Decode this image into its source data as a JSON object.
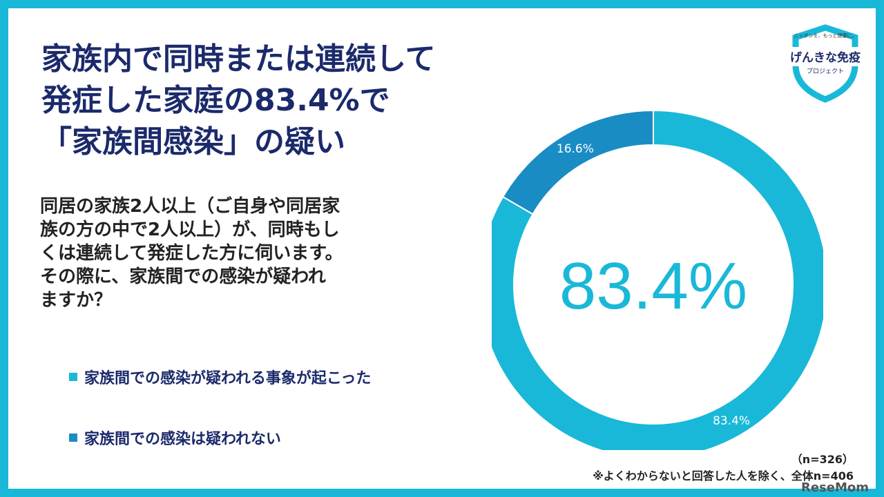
{
  "title": {
    "line1": "家族内で同時または連続して",
    "line2": "発症した家庭の83.4%で",
    "line3": "「家族間感染」の疑い"
  },
  "question": {
    "line1": "同居の家族2人以上（ご自身や同居家",
    "line2": "族の方の中で2人以上）が、同時もし",
    "line3": "くは連続して発症した方に伺います。",
    "line4": "その際に、家族間での感染が疑われ",
    "line5": "ますか？"
  },
  "logo": {
    "tagline": "ニッポンを、もっと健康に。",
    "name": "げんきな免疫",
    "sub": "プロジェクト"
  },
  "n_label": "（n=326）",
  "footnote": "※よくわからないと回答した人を除く、全体n=406",
  "watermark": "ReseMom",
  "colors": {
    "frame": "#1ab8d8",
    "primary": "#1ab8d8",
    "secondary": "#1a8cc4",
    "title": "#1b2a6b"
  },
  "chart_data": {
    "type": "pie",
    "donut": true,
    "center_label": "83.4%",
    "legend_placement": "left",
    "slices": [
      {
        "label": "家族間での感染が疑われる事象が起こった",
        "value": 83.4,
        "display": "83.4%",
        "color": "#1ab8d8"
      },
      {
        "label": "家族間での感染は疑われない",
        "value": 16.6,
        "display": "16.6%",
        "color": "#1a8cc4"
      }
    ]
  }
}
